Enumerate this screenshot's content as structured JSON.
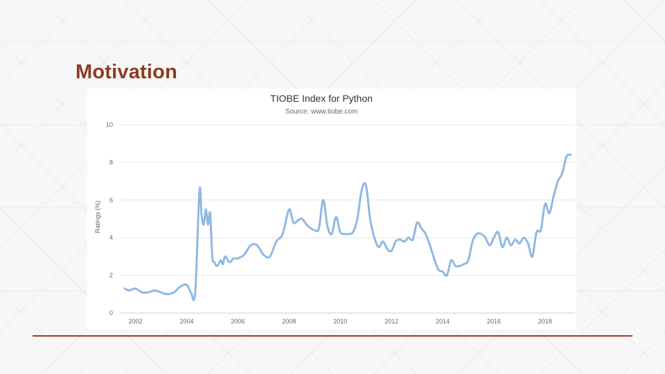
{
  "slide": {
    "title": "Motivation",
    "accent_color": "#8e3a21"
  },
  "chart_data": {
    "type": "line",
    "title": "TIOBE Index for Python",
    "subtitle": "Source: www.tiobe.com",
    "ylabel": "Ratings (%)",
    "xlabel": "",
    "ylim": [
      0,
      10
    ],
    "xlim": [
      "2001-06",
      "2019-03"
    ],
    "yticks": [
      0,
      2,
      4,
      6,
      8,
      10
    ],
    "xticks": [
      "2002",
      "2004",
      "2006",
      "2008",
      "2010",
      "2012",
      "2014",
      "2016",
      "2018"
    ],
    "grid": true,
    "legend": "none",
    "line_color": "#8fb8e3",
    "series": [
      {
        "x": [
          "2001-08",
          "2001-10",
          "2002-01",
          "2002-04",
          "2002-07",
          "2002-10",
          "2003-01",
          "2003-04",
          "2003-07",
          "2003-10",
          "2004-01",
          "2004-03",
          "2004-05",
          "2004-07",
          "2004-08",
          "2004-09",
          "2004-10",
          "2004-11",
          "2004-12",
          "2005-01",
          "2005-02",
          "2005-03",
          "2005-04",
          "2005-05",
          "2005-06",
          "2005-07",
          "2005-09",
          "2005-11",
          "2006-01",
          "2006-04",
          "2006-07",
          "2006-10",
          "2007-01",
          "2007-04",
          "2007-07",
          "2007-10",
          "2008-01",
          "2008-03",
          "2008-05",
          "2008-07",
          "2008-10",
          "2009-01",
          "2009-03",
          "2009-05",
          "2009-07",
          "2009-09",
          "2009-11",
          "2010-01",
          "2010-03",
          "2010-05",
          "2010-07",
          "2010-09",
          "2010-11",
          "2011-01",
          "2011-03",
          "2011-05",
          "2011-07",
          "2011-09",
          "2011-11",
          "2012-01",
          "2012-03",
          "2012-05",
          "2012-07",
          "2012-09",
          "2012-11",
          "2013-01",
          "2013-03",
          "2013-05",
          "2013-07",
          "2013-09",
          "2013-11",
          "2014-01",
          "2014-03",
          "2014-05",
          "2014-07",
          "2014-09",
          "2014-11",
          "2015-01",
          "2015-03",
          "2015-05",
          "2015-07",
          "2015-09",
          "2015-11",
          "2016-01",
          "2016-03",
          "2016-05",
          "2016-07",
          "2016-09",
          "2016-11",
          "2017-01",
          "2017-03",
          "2017-05",
          "2017-07",
          "2017-09",
          "2017-11",
          "2018-01",
          "2018-03",
          "2018-05",
          "2018-07",
          "2018-09",
          "2018-11",
          "2019-01"
        ],
        "y": [
          1.3,
          1.2,
          1.3,
          1.1,
          1.1,
          1.2,
          1.1,
          1.0,
          1.1,
          1.4,
          1.5,
          1.1,
          1.1,
          6.5,
          5.2,
          4.7,
          5.5,
          4.7,
          5.3,
          3.0,
          2.7,
          2.5,
          2.6,
          2.8,
          2.6,
          3.0,
          2.7,
          2.9,
          2.9,
          3.1,
          3.6,
          3.6,
          3.1,
          3.0,
          3.8,
          4.2,
          5.5,
          4.8,
          4.9,
          5.0,
          4.6,
          4.4,
          4.5,
          6.0,
          4.6,
          4.2,
          5.1,
          4.3,
          4.2,
          4.2,
          4.3,
          5.0,
          6.5,
          6.8,
          5.0,
          4.0,
          3.5,
          3.8,
          3.4,
          3.3,
          3.8,
          3.9,
          3.8,
          4.0,
          3.9,
          4.8,
          4.5,
          4.2,
          3.6,
          2.9,
          2.3,
          2.2,
          2.0,
          2.8,
          2.5,
          2.5,
          2.6,
          2.8,
          3.8,
          4.2,
          4.2,
          4.0,
          3.6,
          4.0,
          4.3,
          3.5,
          4.0,
          3.6,
          3.9,
          3.7,
          4.0,
          3.7,
          3.0,
          4.3,
          4.4,
          5.8,
          5.3,
          6.2,
          7.0,
          7.4,
          8.3,
          8.4
        ]
      }
    ]
  }
}
